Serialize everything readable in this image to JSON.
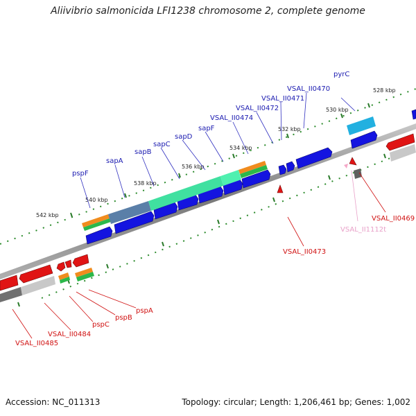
{
  "title": "Aliivibrio salmonicida LFI1238 chromosome 2, complete genome",
  "footer": {
    "accession": "Accession: NC_011313",
    "topology": "Topology: circular; Length: 1,206,461 bp; Genes: 1,002"
  },
  "colors": {
    "forward_gene": "#1414e0",
    "reverse_gene": "#e01414",
    "forward_label": "#1a1ab0",
    "reverse_label": "#d01010",
    "rna_label": "#e8a0c8",
    "backbone": "#8a8a8a"
  },
  "ticks": [
    {
      "label": "528 kbp"
    },
    {
      "label": "530 kbp"
    },
    {
      "label": "532 kbp"
    },
    {
      "label": "534 kbp"
    },
    {
      "label": "536 kbp"
    },
    {
      "label": "538 kbp"
    },
    {
      "label": "540 kbp"
    },
    {
      "label": "542 kbp"
    }
  ],
  "top_labels": [
    "pyrC",
    "VSAL_II0470",
    "VSAL_II0471",
    "VSAL_II0472",
    "VSAL_II0474",
    "sapF",
    "sapD",
    "sapC",
    "sapB",
    "sapA",
    "pspF"
  ],
  "bottom_labels": [
    "VSAL_II0469",
    "VSAL_II1112t",
    "VSAL_II0473",
    "pspA",
    "pspB",
    "pspC",
    "VSAL_II0484",
    "VSAL_II0485"
  ]
}
